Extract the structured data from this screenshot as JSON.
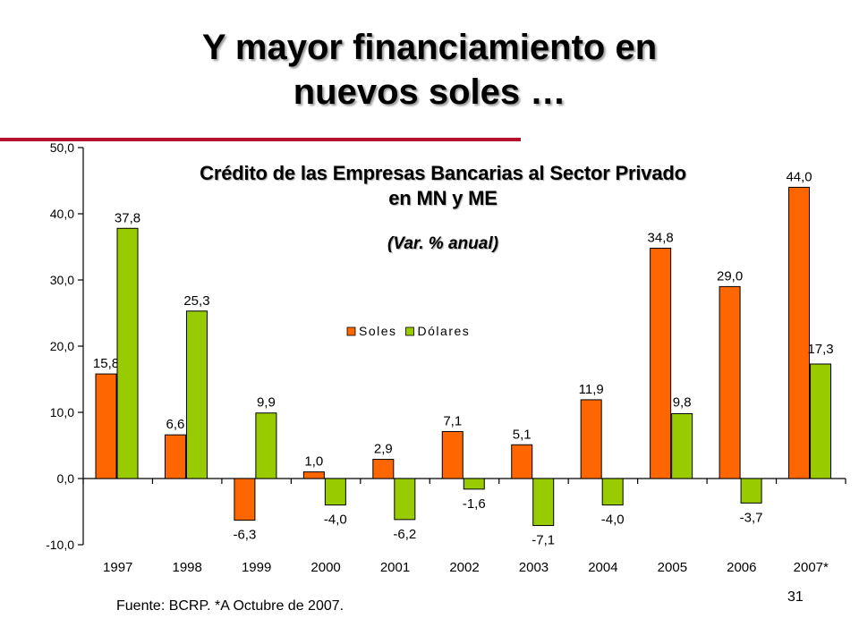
{
  "slide": {
    "title_line1": "Y mayor financiamiento en",
    "title_line2": "nuevos soles …",
    "source": "Fuente: BCRP.  *A Octubre de 2007.",
    "page_number": "31",
    "accent_color": "#b5122e"
  },
  "chart_data": {
    "type": "bar",
    "title_line1": "Crédito de las Empresas Bancarias al Sector Privado",
    "title_line2": "en MN y ME",
    "subtitle": "(Var. % anual)",
    "categories": [
      "1997",
      "1998",
      "1999",
      "2000",
      "2001",
      "2002",
      "2003",
      "2004",
      "2005",
      "2006",
      "2007*"
    ],
    "series": [
      {
        "name": "Soles",
        "color": "#ff6600",
        "values": [
          15.8,
          6.6,
          -6.3,
          1.0,
          2.9,
          7.1,
          5.1,
          11.9,
          34.8,
          29.0,
          44.0
        ],
        "labels": [
          "15,8",
          "6,6",
          "-6,3",
          "1,0",
          "2,9",
          "7,1",
          "5,1",
          "11,9",
          "34,8",
          "29,0",
          "44,0"
        ]
      },
      {
        "name": "Dólares",
        "color": "#99cc00",
        "values": [
          37.8,
          25.3,
          9.9,
          -4.0,
          -6.2,
          -1.6,
          -7.1,
          -4.0,
          9.8,
          -3.7,
          17.3
        ],
        "labels": [
          "37,8",
          "25,3",
          "9,9",
          "-4,0",
          "-6,2",
          "-1,6",
          "-7,1",
          "-4,0",
          "9,8",
          "-3,7",
          "17,3"
        ]
      }
    ],
    "ylim": [
      -10,
      50
    ],
    "yticks": [
      -10,
      0,
      10,
      20,
      30,
      40,
      50
    ],
    "ytick_labels": [
      "-10,0",
      "0,0",
      "10,0",
      "20,0",
      "30,0",
      "40,0",
      "50,0"
    ],
    "grid": false,
    "legend_position": "center"
  }
}
